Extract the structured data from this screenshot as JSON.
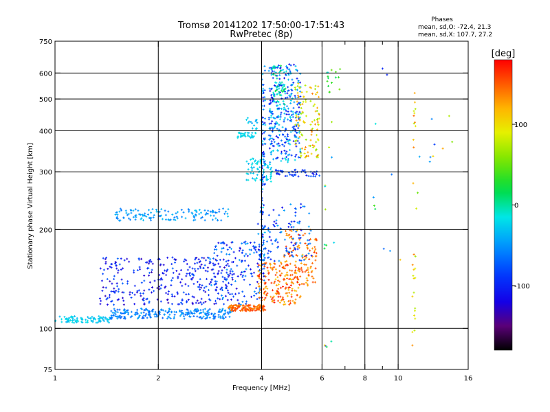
{
  "chart_data": {
    "type": "scatter",
    "title": "Tromsø 20141202 17:50:00-17:51:43",
    "subtitle": "RwPretec (8p)",
    "xlabel": "Frequency [MHz]",
    "ylabel": "Stationary phase Virtual Height [km]",
    "x_scale": "log",
    "y_scale": "log",
    "xlim": [
      1,
      16
    ],
    "ylim": [
      75,
      750
    ],
    "x_ticks": [
      1,
      2,
      4,
      6,
      8,
      10,
      16
    ],
    "x_minor_ticks": [
      7,
      9
    ],
    "y_ticks": [
      75,
      100,
      200,
      300,
      400,
      500,
      600,
      750
    ],
    "grid_x": [
      2,
      4,
      6,
      8,
      10
    ],
    "grid_y": [
      100,
      200,
      300,
      400,
      500,
      600
    ],
    "phases_box": {
      "title": "Phases",
      "line_o": "mean, sd,O: -72.4, 21.3",
      "line_x": "mean, sd,X: 107.7, 27.2"
    },
    "colorbar": {
      "label": "[deg]",
      "range": [
        -180,
        180
      ],
      "ticks": [
        100,
        0,
        -100
      ],
      "colormap": "rainbow"
    },
    "clusters": [
      {
        "x": [
          1.0,
          1.45
        ],
        "y": [
          104,
          109
        ],
        "phase": [
          -40,
          -15
        ],
        "n": 90
      },
      {
        "x": [
          1.45,
          3.3
        ],
        "y": [
          107,
          115
        ],
        "phase": [
          -75,
          -40
        ],
        "n": 240
      },
      {
        "x": [
          3.2,
          4.1
        ],
        "y": [
          113,
          118
        ],
        "phase": [
          130,
          165
        ],
        "n": 130
      },
      {
        "x": [
          1.35,
          3.3
        ],
        "y": [
          118,
          165
        ],
        "phase": [
          -135,
          -70
        ],
        "n": 320
      },
      {
        "x": [
          2.8,
          4.0
        ],
        "y": [
          118,
          185
        ],
        "phase": [
          -125,
          -40
        ],
        "n": 160
      },
      {
        "x": [
          3.9,
          5.2
        ],
        "y": [
          118,
          160
        ],
        "phase": [
          110,
          175
        ],
        "n": 170
      },
      {
        "x": [
          4.6,
          5.8
        ],
        "y": [
          135,
          200
        ],
        "phase": [
          115,
          165
        ],
        "n": 120
      },
      {
        "x": [
          3.9,
          5.6
        ],
        "y": [
          160,
          240
        ],
        "phase": [
          -115,
          -40
        ],
        "n": 110
      },
      {
        "x": [
          1.5,
          3.2
        ],
        "y": [
          213,
          232
        ],
        "phase": [
          -65,
          -30
        ],
        "n": 130
      },
      {
        "x": [
          3.6,
          4.3
        ],
        "y": [
          280,
          330
        ],
        "phase": [
          -40,
          -10
        ],
        "n": 70
      },
      {
        "x": [
          4.4,
          5.9
        ],
        "y": [
          290,
          305
        ],
        "phase": [
          -110,
          -70
        ],
        "n": 50
      },
      {
        "x": [
          3.4,
          3.85
        ],
        "y": [
          380,
          395
        ],
        "phase": [
          -40,
          -10
        ],
        "n": 35
      },
      {
        "x": [
          3.6,
          3.9
        ],
        "y": [
          405,
          440
        ],
        "phase": [
          -50,
          -20
        ],
        "n": 15
      },
      {
        "x": [
          4.2,
          5.2
        ],
        "y": [
          320,
          640
        ],
        "phase": [
          -120,
          -10
        ],
        "n": 330
      },
      {
        "x": [
          5.0,
          5.9
        ],
        "y": [
          330,
          560
        ],
        "phase": [
          60,
          140
        ],
        "n": 110
      },
      {
        "x": [
          4.3,
          4.7
        ],
        "y": [
          480,
          640
        ],
        "phase": [
          -20,
          20
        ],
        "n": 40
      },
      {
        "x": [
          4.0,
          4.1
        ],
        "y": [
          140,
          640
        ],
        "phase": [
          -120,
          -20
        ],
        "n": 110
      },
      {
        "x": [
          6.2,
          6.8
        ],
        "y": [
          520,
          620
        ],
        "phase": [
          -30,
          60
        ],
        "n": 15
      },
      {
        "x": [
          6.0,
          6.6
        ],
        "y": [
          170,
          430
        ],
        "phase": [
          -80,
          130
        ],
        "n": 10
      },
      {
        "x": [
          6.0,
          6.5
        ],
        "y": [
          85,
          92
        ],
        "phase": [
          -100,
          120
        ],
        "n": 4
      },
      {
        "x": [
          8.2,
          10.2
        ],
        "y": [
          140,
          640
        ],
        "phase": [
          -110,
          150
        ],
        "n": 10
      },
      {
        "x": [
          11.0,
          11.3
        ],
        "y": [
          85,
          640
        ],
        "phase": [
          60,
          150
        ],
        "n": 30
      },
      {
        "x": [
          11.3,
          14.5
        ],
        "y": [
          250,
          640
        ],
        "phase": [
          -120,
          150
        ],
        "n": 10
      }
    ]
  }
}
